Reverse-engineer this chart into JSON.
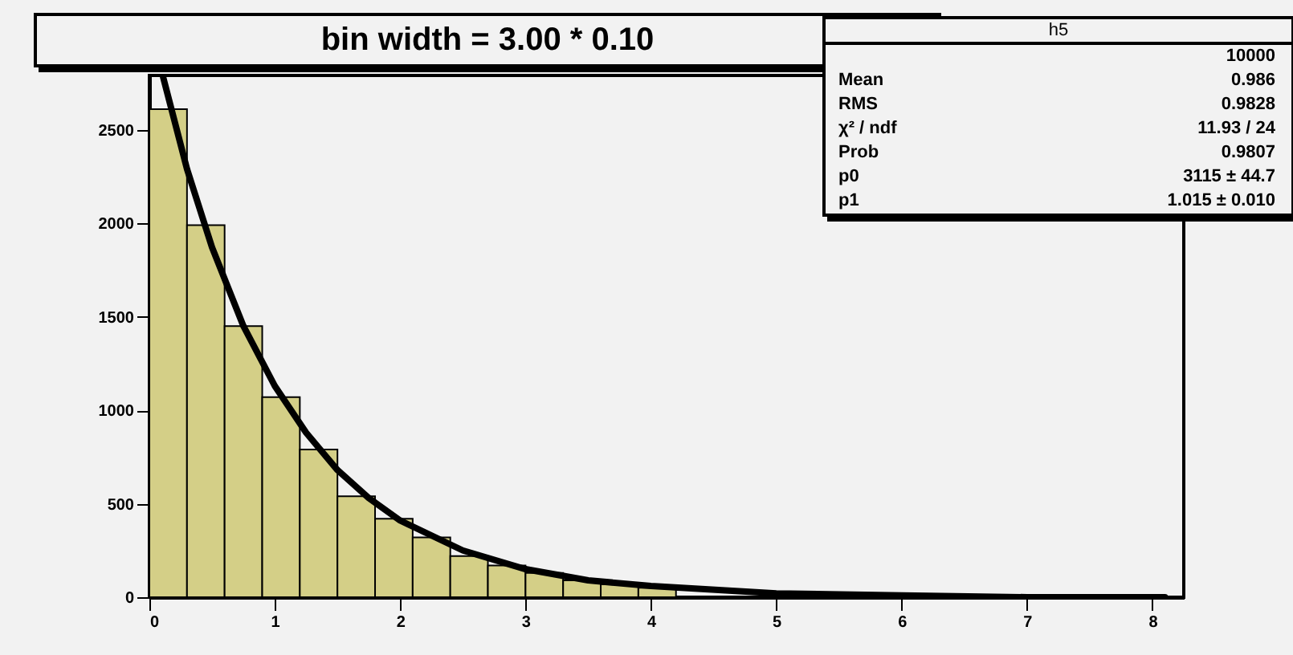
{
  "chart_data": {
    "type": "histogram",
    "title": "bin width = 3.00 * 0.10",
    "bins": [
      0,
      0.3,
      0.6,
      0.9,
      1.2,
      1.5,
      1.8,
      2.1,
      2.4,
      2.7,
      3.0,
      3.3,
      3.6,
      3.9,
      4.2,
      4.5,
      4.8,
      5.1,
      5.4,
      5.7,
      6.0,
      6.3,
      6.6,
      6.9,
      7.2,
      7.5,
      7.8,
      8.1
    ],
    "values": [
      2610,
      1990,
      1450,
      1070,
      790,
      540,
      420,
      320,
      220,
      170,
      130,
      90,
      70,
      50,
      null,
      null,
      null,
      null,
      null,
      null,
      null,
      null,
      null,
      null,
      null,
      null,
      null
    ],
    "color": "#d4cf87",
    "series": [
      {
        "type": "line",
        "color": "#000000",
        "x": [
          0.11,
          0.3,
          0.5,
          0.75,
          1,
          1.25,
          1.5,
          1.75,
          2,
          2.5,
          3,
          3.5,
          4,
          5,
          6,
          7,
          8.1
        ],
        "values": [
          2780,
          2290,
          1870,
          1450,
          1130,
          880,
          680,
          530,
          410,
          250,
          150,
          90,
          60,
          20,
          10,
          0,
          0
        ]
      }
    ],
    "xlim": [
      0,
      8.25
    ],
    "ylim": [
      0,
      2790
    ],
    "xticks": [
      0,
      1,
      2,
      3,
      4,
      5,
      6,
      7,
      8
    ],
    "yticks": [
      0,
      500,
      1000,
      1500,
      2000,
      2500
    ],
    "annotations": [
      "h5",
      "10000",
      "Mean",
      "0.986",
      "RMS",
      "0.9828",
      "χ² / ndf",
      "11.93 / 24",
      "Prob",
      "0.9807",
      "p0",
      "3115 ± 44.7",
      "p1",
      "1.015 ± 0.010"
    ]
  }
}
